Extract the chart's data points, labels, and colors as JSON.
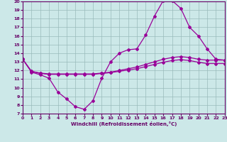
{
  "xlabel": "Windchill (Refroidissement éolien,°C)",
  "background_color": "#cce8e8",
  "line_color": "#990099",
  "grid_color": "#99bbbb",
  "xmin": 0,
  "xmax": 23,
  "ymin": 7,
  "ymax": 20,
  "yticks": [
    7,
    8,
    9,
    10,
    11,
    12,
    13,
    14,
    15,
    16,
    17,
    18,
    19,
    20
  ],
  "xticks": [
    0,
    1,
    2,
    3,
    4,
    5,
    6,
    7,
    8,
    9,
    10,
    11,
    12,
    13,
    14,
    15,
    16,
    17,
    18,
    19,
    20,
    21,
    22,
    23
  ],
  "series1_y": [
    13.3,
    11.8,
    11.5,
    11.1,
    9.5,
    8.7,
    7.8,
    7.5,
    8.5,
    11.1,
    13.0,
    14.0,
    14.4,
    14.5,
    16.1,
    18.3,
    20.1,
    20.1,
    19.2,
    17.0,
    16.0,
    14.5,
    13.3,
    13.2
  ],
  "series2_y": [
    13.3,
    11.9,
    11.7,
    11.6,
    11.6,
    11.6,
    11.6,
    11.6,
    11.6,
    11.7,
    11.8,
    12.0,
    12.2,
    12.4,
    12.7,
    13.0,
    13.3,
    13.5,
    13.6,
    13.5,
    13.3,
    13.2,
    13.2,
    13.2
  ],
  "series3_y": [
    13.3,
    11.9,
    11.65,
    11.55,
    11.55,
    11.55,
    11.55,
    11.55,
    11.55,
    11.65,
    11.75,
    11.9,
    12.05,
    12.2,
    12.45,
    12.7,
    12.95,
    13.15,
    13.25,
    13.15,
    12.95,
    12.8,
    12.8,
    12.8
  ]
}
